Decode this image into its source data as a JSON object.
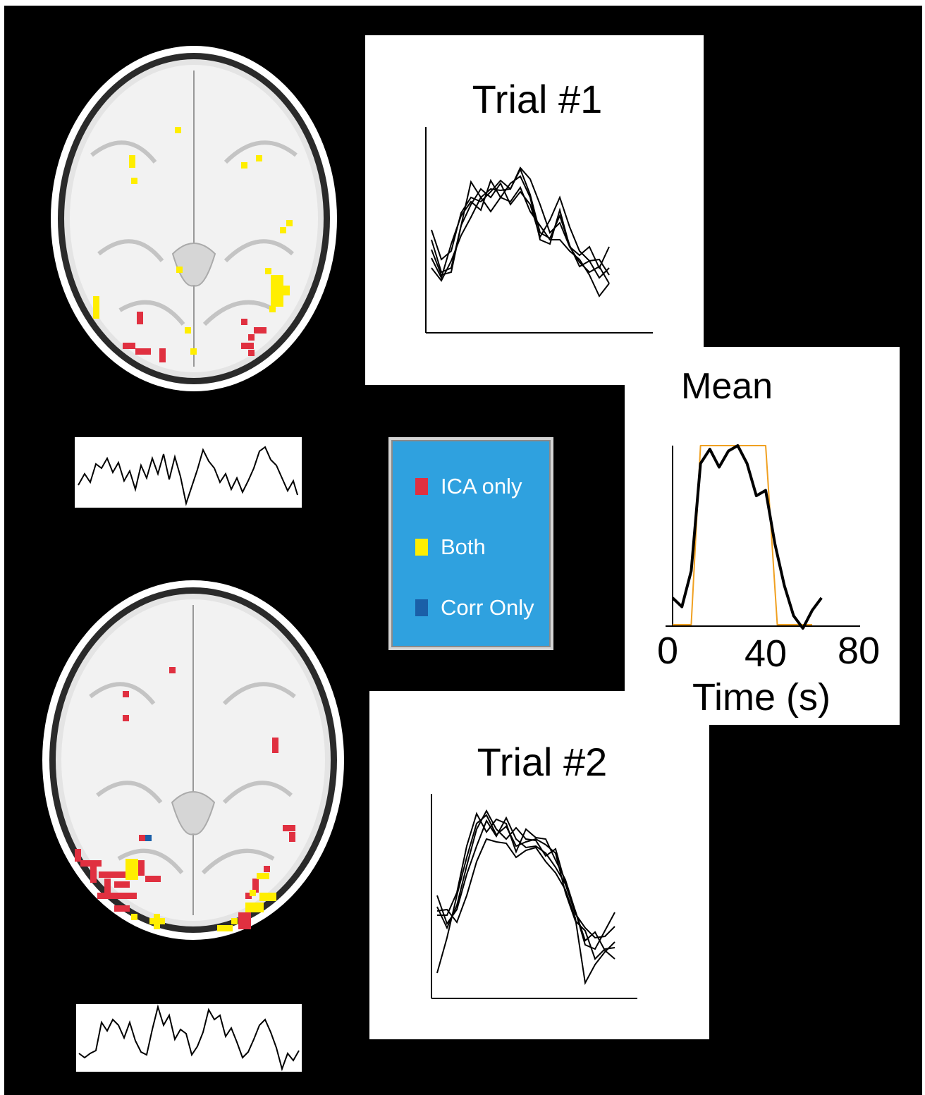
{
  "panels": {
    "trial1": {
      "title": "Trial #1"
    },
    "trial2": {
      "title": "Trial #2"
    },
    "mean": {
      "title": "Mean",
      "x_ticks": [
        "0",
        "40",
        "80"
      ],
      "x_label": "Time (s)"
    }
  },
  "legend": {
    "items": [
      {
        "label": "ICA only",
        "color": "#e03040"
      },
      {
        "label": "Both",
        "color": "#ffee00"
      },
      {
        "label": "Corr Only",
        "color": "#1a5fa8"
      }
    ]
  },
  "colors": {
    "background": "#000000",
    "panel": "#ffffff",
    "legend_bg": "#2fa1df",
    "ica_only": "#e03040",
    "both": "#ffee00",
    "corr_only": "#1a5fa8",
    "reference_box": "#f0a020",
    "trace": "#000000"
  },
  "chart_data": [
    {
      "type": "line",
      "title": "Mean",
      "x_ticks": [
        "0",
        "40",
        "80"
      ],
      "xlabel": "Time (s)",
      "xlim": [
        0,
        80
      ],
      "ylim": [
        0,
        1
      ],
      "series": [
        {
          "x": [
            0,
            4,
            8,
            12,
            16,
            20,
            24,
            28,
            32,
            36,
            40,
            44,
            48,
            52,
            56,
            60,
            64
          ],
          "values": [
            0.15,
            0.1,
            0.3,
            0.9,
            0.98,
            0.88,
            0.97,
            1.0,
            0.9,
            0.72,
            0.75,
            0.45,
            0.22,
            0.05,
            -0.02,
            0.08,
            0.15
          ]
        },
        {
          "x": [
            0,
            8,
            12,
            40,
            45,
            52,
            60
          ],
          "values": [
            0,
            0,
            1,
            1,
            0,
            0,
            0
          ]
        }
      ]
    }
  ]
}
